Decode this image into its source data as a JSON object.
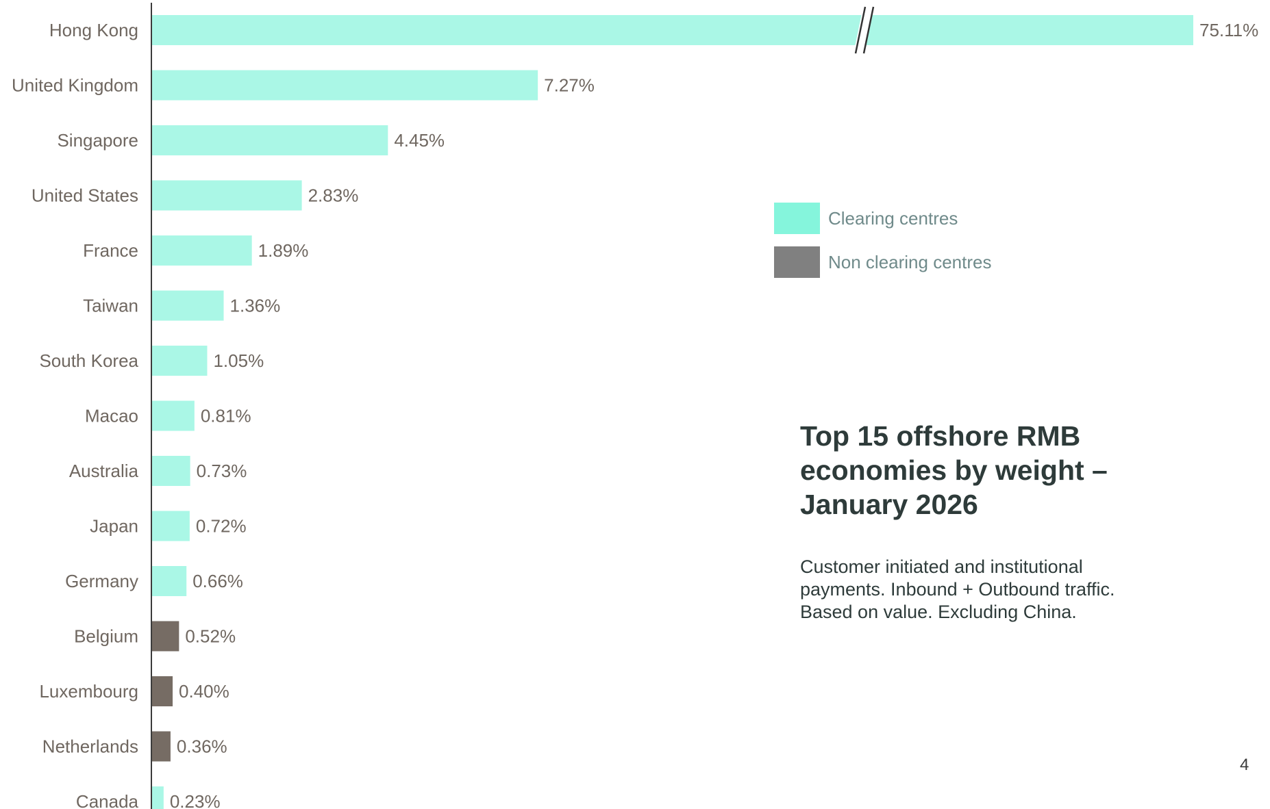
{
  "chart_data": {
    "type": "bar",
    "orientation": "horizontal",
    "title": "Top 15 offshore RMB economies by weight – January 2026",
    "subtitle": "Customer initiated and institutional payments. Inbound + Outbound traffic. Based on value. Excluding China.",
    "categories": [
      "Hong Kong",
      "United Kingdom",
      "Singapore",
      "United States",
      "France",
      "Taiwan",
      "South Korea",
      "Macao",
      "Australia",
      "Japan",
      "Germany",
      "Belgium",
      "Luxembourg",
      "Netherlands",
      "Canada"
    ],
    "values": [
      75.11,
      7.27,
      4.45,
      2.83,
      1.89,
      1.36,
      1.05,
      0.81,
      0.73,
      0.72,
      0.66,
      0.52,
      0.4,
      0.36,
      0.23
    ],
    "value_labels": [
      "75.11%",
      "7.27%",
      "4.45%",
      "2.83%",
      "1.89%",
      "1.36%",
      "1.05%",
      "0.81%",
      "0.73%",
      "0.72%",
      "0.66%",
      "0.52%",
      "0.40%",
      "0.36%",
      "0.23%"
    ],
    "groups": [
      "clearing",
      "clearing",
      "clearing",
      "clearing",
      "clearing",
      "clearing",
      "clearing",
      "clearing",
      "clearing",
      "clearing",
      "clearing",
      "non-clearing",
      "non-clearing",
      "non-clearing",
      "clearing"
    ],
    "axis_break": {
      "category": "Hong Kong"
    },
    "legend": [
      {
        "key": "clearing",
        "label": "Clearing centres",
        "color": "#85f5dc"
      },
      {
        "key": "non-clearing",
        "label": "Non clearing centres",
        "color": "#808080"
      }
    ],
    "legend_position": "right",
    "bar_colors": {
      "clearing": "#aaf7e6",
      "non-clearing": "#766c64"
    },
    "grid": false
  },
  "title_lines": [
    "Top 15 offshore RMB",
    "economies by weight –",
    "January 2026"
  ],
  "subtitle_lines": [
    "Customer initiated and institutional",
    "payments. Inbound + Outbound traffic.",
    "Based on value. Excluding China."
  ],
  "page_number": "4",
  "colors": {
    "axis": "#3b3b3b",
    "label_text": "#6f6760",
    "title_text": "#2e3b3a"
  }
}
